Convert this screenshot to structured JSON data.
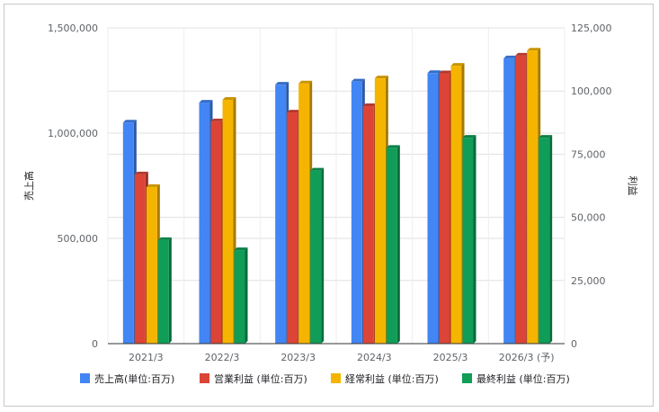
{
  "chart_data": {
    "type": "bar",
    "categories": [
      "2021/3",
      "2022/3",
      "2023/3",
      "2024/3",
      "2025/3",
      "2026/3 (予)"
    ],
    "series": [
      {
        "name": "売上高(単位:百万)",
        "axis": "left",
        "color": "#4285f4",
        "values": [
          1050000,
          1145000,
          1230000,
          1245000,
          1285000,
          1355000
        ]
      },
      {
        "name": "営業利益 (単位:百万)",
        "axis": "right",
        "color": "#db4437",
        "values": [
          67000,
          88000,
          91500,
          94000,
          107000,
          114000
        ]
      },
      {
        "name": "経常利益 (単位:百万)",
        "axis": "right",
        "color": "#f4b400",
        "values": [
          62000,
          96500,
          103000,
          105000,
          110000,
          116000
        ]
      },
      {
        "name": "最終利益 (単位:百万)",
        "axis": "right",
        "color": "#0f9d58",
        "values": [
          41000,
          37000,
          68500,
          77500,
          81500,
          81500
        ]
      }
    ],
    "ylabel": "売上高",
    "y2label": "利益",
    "ylim": [
      0,
      1500000
    ],
    "y2lim": [
      0,
      125000
    ],
    "yticks": [
      "0",
      "500,000",
      "1,000,000",
      "1,500,000"
    ],
    "y2ticks": [
      "0",
      "25,000",
      "50,000",
      "75,000",
      "100,000",
      "125,000"
    ],
    "grid": true,
    "legend_position": "bottom"
  }
}
